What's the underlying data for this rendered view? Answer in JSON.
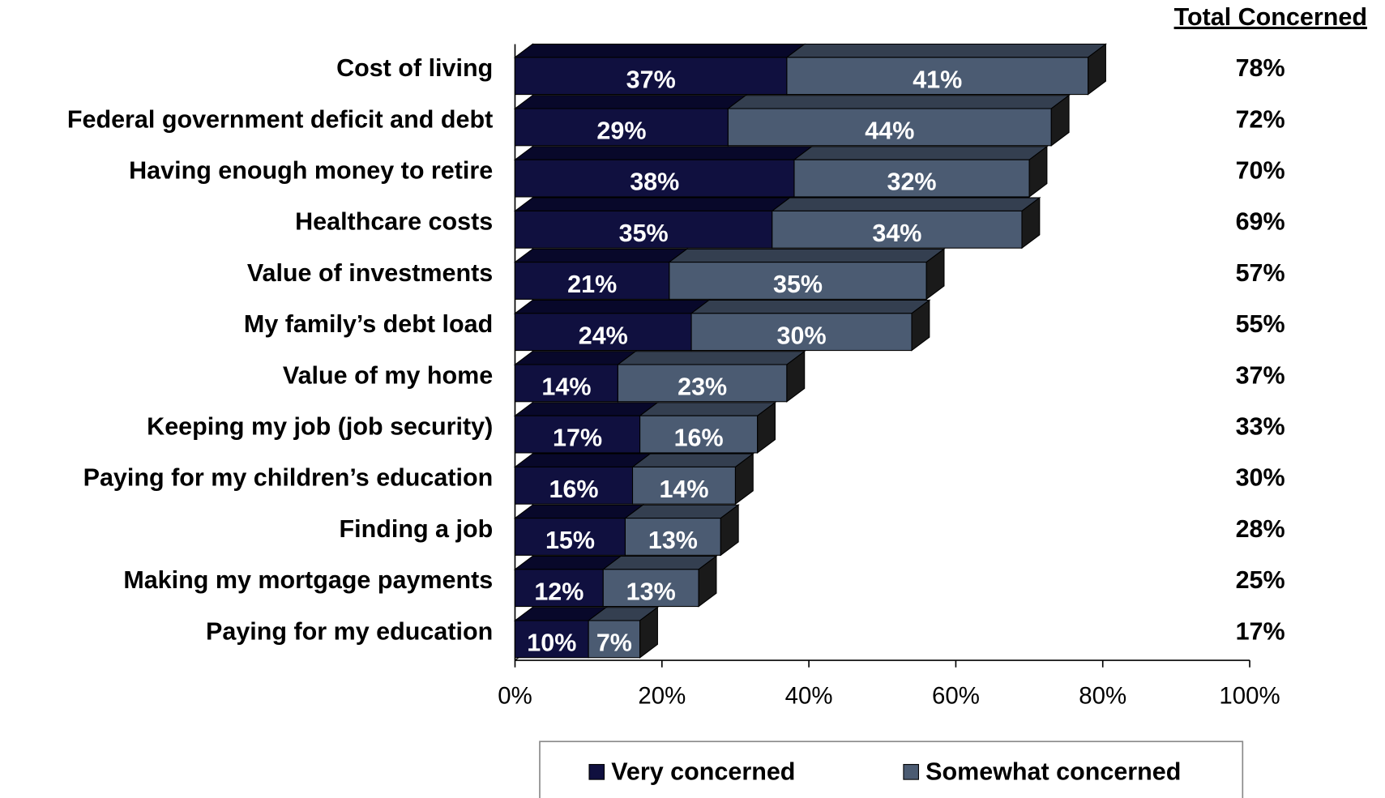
{
  "chart_data": {
    "type": "stacked-bar-3d",
    "categories": [
      "Cost of living",
      "Federal government deficit and debt",
      "Having enough money to retire",
      "Healthcare costs",
      "Value of investments",
      "My family’s debt load",
      "Value of my home",
      "Keeping my job (job security)",
      "Paying for my children’s education",
      "Finding a job",
      "Making my mortgage payments",
      "Paying for my education"
    ],
    "series": [
      {
        "name": "Very concerned",
        "color": "#10103f",
        "top_color": "#08082a",
        "values": [
          37,
          29,
          38,
          35,
          21,
          24,
          14,
          17,
          16,
          15,
          12,
          10
        ],
        "value_labels": [
          "37%",
          "29%",
          "38%",
          "35%",
          "21%",
          "24%",
          "14%",
          "17%",
          "16%",
          "15%",
          "12%",
          "10%"
        ]
      },
      {
        "name": "Somewhat concerned",
        "color": "#4b5b72",
        "top_color": "#343f50",
        "values": [
          41,
          44,
          32,
          34,
          35,
          30,
          23,
          16,
          14,
          13,
          13,
          7
        ],
        "value_labels": [
          "41%",
          "44%",
          "32%",
          "34%",
          "35%",
          "30%",
          "23%",
          "16%",
          "14%",
          "13%",
          "13%",
          "7%"
        ]
      }
    ],
    "totals_header": "Total Concerned",
    "totals": [
      78,
      72,
      70,
      69,
      57,
      55,
      37,
      33,
      30,
      28,
      25,
      17
    ],
    "totals_labels": [
      "78%",
      "72%",
      "70%",
      "69%",
      "57%",
      "55%",
      "37%",
      "33%",
      "30%",
      "28%",
      "25%",
      "17%"
    ],
    "xlim": [
      0,
      100
    ],
    "xticks": [
      {
        "value": 0,
        "label": "0%"
      },
      {
        "value": 20,
        "label": "20%"
      },
      {
        "value": 40,
        "label": "40%"
      },
      {
        "value": 60,
        "label": "60%"
      },
      {
        "value": 80,
        "label": "80%"
      },
      {
        "value": 100,
        "label": "100%"
      }
    ],
    "legend": "bottom"
  }
}
